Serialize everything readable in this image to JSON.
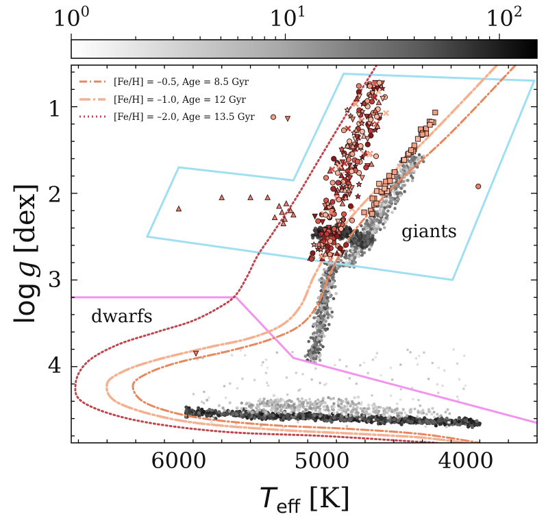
{
  "chart_data": {
    "type": "scatter",
    "xlabel_main": "T",
    "xlabel_sub": "eff",
    "xlabel_unit": "[K]",
    "ylabel_main": "log",
    "ylabel_var": "g",
    "ylabel_unit": "[dex]",
    "xlim": [
      6750,
      3500
    ],
    "ylim": [
      4.88,
      0.52
    ],
    "x_ticks": [
      6000,
      5000,
      4000
    ],
    "x_tick_labels": [
      "6000",
      "5000",
      "4000"
    ],
    "y_ticks": [
      1,
      2,
      3,
      4
    ],
    "y_tick_labels": [
      "1",
      "2",
      "3",
      "4"
    ],
    "colorbar": {
      "scale": "log",
      "range": [
        1,
        150
      ],
      "tick_base": "10",
      "tick_exponents": [
        "0",
        "1",
        "2"
      ],
      "colors": [
        "#ffffff",
        "#000000"
      ]
    },
    "legend": {
      "position": "top-left",
      "entries": [
        {
          "label": "[Fe/H] = –0.5, Age = 8.5 Gyr",
          "color": "#e8875e",
          "style": "dashdot"
        },
        {
          "label": "[Fe/H] = –1.0, Age = 12 Gyr",
          "color": "#f5b08f",
          "style": "dashdot-long"
        },
        {
          "label": "[Fe/H] = –2.0, Age = 13.5 Gyr",
          "color": "#c0444b",
          "style": "dotted"
        }
      ]
    },
    "region_labels": {
      "giants": "giants",
      "dwarfs": "dwarfs"
    },
    "regions": {
      "giants_box": {
        "color": "#9fdff2",
        "points": [
          [
            4850,
            0.62
          ],
          [
            3520,
            0.7
          ],
          [
            4090,
            3.0
          ],
          [
            6220,
            2.5
          ],
          [
            6000,
            1.7
          ],
          [
            5200,
            1.85
          ]
        ]
      },
      "dwarfs_line": {
        "color": "#f293ef",
        "points": [
          [
            6750,
            3.2
          ],
          [
            5600,
            3.2
          ],
          [
            5200,
            3.9
          ],
          [
            3500,
            4.65
          ]
        ]
      }
    },
    "isochrones": [
      {
        "name": "[Fe/H] = -0.5, Age = 8.5 Gyr",
        "points": [
          [
            3650,
            0.52
          ],
          [
            4100,
            1.3
          ],
          [
            4500,
            1.92
          ],
          [
            4750,
            2.38
          ],
          [
            4850,
            2.62
          ],
          [
            4950,
            2.95
          ],
          [
            5030,
            3.28
          ],
          [
            5150,
            3.52
          ],
          [
            5350,
            3.68
          ],
          [
            5650,
            3.82
          ],
          [
            6000,
            3.95
          ],
          [
            6220,
            4.08
          ],
          [
            6320,
            4.22
          ],
          [
            6230,
            4.42
          ],
          [
            5900,
            4.58
          ],
          [
            5400,
            4.67
          ],
          [
            4800,
            4.72
          ],
          [
            4300,
            4.78
          ],
          [
            3900,
            4.88
          ]
        ]
      },
      {
        "name": "[Fe/H] = -1.0, Age = 12 Gyr",
        "points": [
          [
            3780,
            0.52
          ],
          [
            4200,
            1.25
          ],
          [
            4600,
            1.92
          ],
          [
            4850,
            2.38
          ],
          [
            4950,
            2.64
          ],
          [
            5060,
            2.97
          ],
          [
            5150,
            3.3
          ],
          [
            5280,
            3.52
          ],
          [
            5500,
            3.67
          ],
          [
            5800,
            3.78
          ],
          [
            6150,
            3.92
          ],
          [
            6380,
            4.05
          ],
          [
            6500,
            4.2
          ],
          [
            6420,
            4.42
          ],
          [
            6000,
            4.62
          ],
          [
            5400,
            4.72
          ],
          [
            4700,
            4.78
          ],
          [
            4300,
            4.82
          ],
          [
            4000,
            4.88
          ]
        ]
      },
      {
        "name": "[Fe/H] = -2.0, Age = 13.5 Gyr",
        "points": [
          [
            4620,
            0.52
          ],
          [
            4780,
            0.95
          ],
          [
            5000,
            1.55
          ],
          [
            5180,
            2.05
          ],
          [
            5340,
            2.45
          ],
          [
            5450,
            2.72
          ],
          [
            5520,
            2.95
          ],
          [
            5600,
            3.17
          ],
          [
            5700,
            3.3
          ],
          [
            5900,
            3.47
          ],
          [
            6150,
            3.6
          ],
          [
            6430,
            3.75
          ],
          [
            6640,
            3.95
          ],
          [
            6720,
            4.2
          ],
          [
            6660,
            4.42
          ],
          [
            6300,
            4.62
          ],
          [
            5700,
            4.75
          ],
          [
            5000,
            4.8
          ],
          [
            4400,
            4.86
          ],
          [
            4200,
            4.88
          ]
        ]
      }
    ]
  }
}
